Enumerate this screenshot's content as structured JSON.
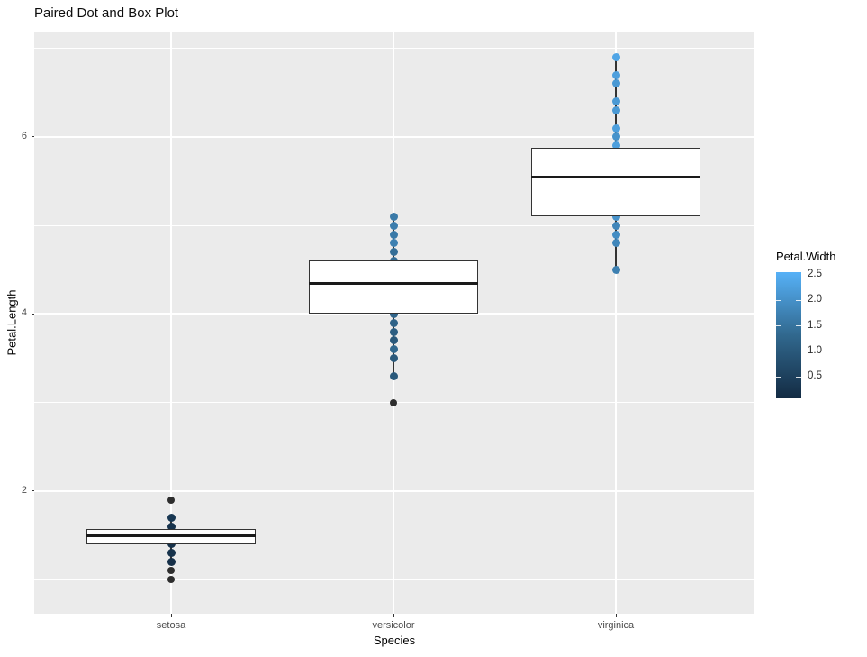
{
  "title": "Paired Dot and Box Plot",
  "chart_data": {
    "type": "boxplot+dotplot",
    "title": "Paired Dot and Box Plot",
    "xlabel": "Species",
    "ylabel": "Petal.Length",
    "categories": [
      "setosa",
      "versicolor",
      "virginica"
    ],
    "y_axis": {
      "major_ticks": [
        2,
        4,
        6
      ],
      "major_tick_labels": [
        "2",
        "4",
        "6"
      ],
      "minor_ticks": [
        1,
        3,
        5,
        7
      ],
      "range": [
        0.615,
        7.18
      ],
      "grid": true
    },
    "series": [
      {
        "name": "setosa",
        "box": {
          "q1": 1.4,
          "median": 1.5,
          "q3": 1.575,
          "whisker_low": 1.2,
          "whisker_high": 1.7
        },
        "outliers": [
          1.9,
          1.1,
          1.0
        ],
        "dots": [
          {
            "value": 1.7,
            "petal_width": 0.35
          },
          {
            "value": 1.6,
            "petal_width": 0.26
          },
          {
            "value": 1.4,
            "petal_width": 0.21
          },
          {
            "value": 1.3,
            "petal_width": 0.25
          },
          {
            "value": 1.2,
            "petal_width": 0.2
          }
        ]
      },
      {
        "name": "versicolor",
        "box": {
          "q1": 4.0,
          "median": 4.35,
          "q3": 4.6,
          "whisker_low": 3.3,
          "whisker_high": 5.1
        },
        "outliers": [
          3.0
        ],
        "dots": [
          {
            "value": 5.1,
            "petal_width": 1.6
          },
          {
            "value": 5.0,
            "petal_width": 1.65
          },
          {
            "value": 4.9,
            "petal_width": 1.6
          },
          {
            "value": 4.8,
            "petal_width": 1.7
          },
          {
            "value": 4.7,
            "petal_width": 1.4
          },
          {
            "value": 4.6,
            "petal_width": 1.4
          },
          {
            "value": 4.0,
            "petal_width": 1.25
          },
          {
            "value": 3.9,
            "petal_width": 1.2
          },
          {
            "value": 3.8,
            "petal_width": 1.1
          },
          {
            "value": 3.7,
            "petal_width": 1.0
          },
          {
            "value": 3.6,
            "petal_width": 1.3
          },
          {
            "value": 3.5,
            "petal_width": 1.0
          },
          {
            "value": 3.3,
            "petal_width": 1.0
          }
        ]
      },
      {
        "name": "virginica",
        "box": {
          "q1": 5.1,
          "median": 5.55,
          "q3": 5.875,
          "whisker_low": 4.5,
          "whisker_high": 6.9
        },
        "outliers": [],
        "dots": [
          {
            "value": 6.9,
            "petal_width": 2.3
          },
          {
            "value": 6.7,
            "petal_width": 2.2
          },
          {
            "value": 6.6,
            "petal_width": 2.1
          },
          {
            "value": 6.4,
            "petal_width": 2.1
          },
          {
            "value": 6.3,
            "petal_width": 2.1
          },
          {
            "value": 6.1,
            "petal_width": 2.2
          },
          {
            "value": 6.0,
            "petal_width": 2.0
          },
          {
            "value": 5.9,
            "petal_width": 2.2
          },
          {
            "value": 5.1,
            "petal_width": 2.0
          },
          {
            "value": 5.0,
            "petal_width": 1.8
          },
          {
            "value": 4.9,
            "petal_width": 1.9
          },
          {
            "value": 4.8,
            "petal_width": 1.8
          },
          {
            "value": 4.5,
            "petal_width": 1.7
          }
        ]
      }
    ],
    "legend": {
      "title": "Petal.Width",
      "position": "right",
      "tick_labels": [
        "2.5",
        "2.0",
        "1.5",
        "1.0",
        "0.5"
      ],
      "tick_values": [
        2.5,
        2.0,
        1.5,
        1.0,
        0.5
      ],
      "bar_tick_values": [
        2.0,
        1.5,
        1.0,
        0.5
      ],
      "domain": [
        0.1,
        2.5
      ],
      "gradient_low_color": "#132B43",
      "gradient_mid_color": "#31688E",
      "gradient_high_color": "#56B1F7"
    },
    "style": {
      "panel_bg": "#EBEBEB",
      "grid_color": "#FFFFFF",
      "box_fill": "#FFFFFF",
      "box_border": "#333333",
      "median_color": "#1A1A1A",
      "whisker_color": "#333333",
      "outlier_color": "#2E2E2E",
      "tick_label_color": "#4D4D4D"
    }
  }
}
